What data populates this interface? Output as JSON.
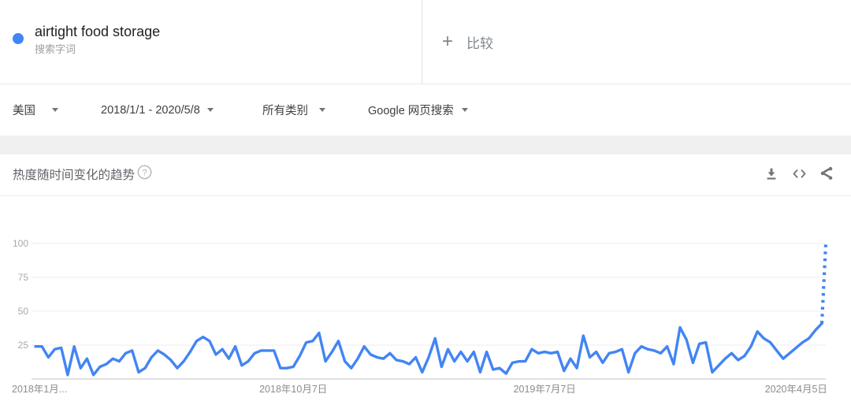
{
  "term": {
    "query": "airtight food storage",
    "type_label": "搜索字词"
  },
  "compare": {
    "plus_glyph": "+",
    "label": "比较"
  },
  "filters": [
    {
      "label": "美国"
    },
    {
      "label": "2018/1/1 - 2020/5/8"
    },
    {
      "label": "所有类别"
    },
    {
      "label": "Google 网页搜索"
    }
  ],
  "chart_section": {
    "title": "热度随时间变化的趋势",
    "action_icons": [
      "download-icon",
      "embed-icon",
      "share-icon"
    ]
  },
  "colors": {
    "accent_blue": "#4285f4",
    "grid": "#ececec",
    "axis": "#cfcfcf"
  },
  "chart_data": {
    "type": "line",
    "title": "热度随时间变化的趋势",
    "series_name": "airtight food storage",
    "region": "美国",
    "x_start": "2018/1/1",
    "x_end": "2020/5/8",
    "interval": "weekly",
    "ylim": [
      0,
      100
    ],
    "yticks": [
      25,
      50,
      75,
      100
    ],
    "grid": true,
    "legend_position": "none",
    "line_color": "#4285f4",
    "xticks": [
      {
        "label": "2018年1月...",
        "index": 0,
        "align": "start"
      },
      {
        "label": "2018年10月7日",
        "index": 40,
        "align": "middle"
      },
      {
        "label": "2019年7月7日",
        "index": 79,
        "align": "middle"
      },
      {
        "label": "2020年4月5日",
        "index": 118,
        "align": "middle"
      }
    ],
    "values": [
      24,
      24,
      16,
      22,
      23,
      3,
      24,
      8,
      15,
      3,
      9,
      11,
      15,
      13,
      19,
      21,
      5,
      8,
      16,
      21,
      18,
      14,
      8,
      13,
      20,
      28,
      31,
      28,
      18,
      22,
      15,
      24,
      10,
      13,
      19,
      21,
      21,
      21,
      8,
      8,
      9,
      17,
      27,
      28,
      34,
      13,
      20,
      28,
      13,
      8,
      15,
      24,
      18,
      16,
      15,
      19,
      14,
      13,
      11,
      16,
      5,
      16,
      30,
      9,
      22,
      13,
      20,
      13,
      20,
      5,
      20,
      7,
      8,
      4,
      12,
      13,
      13,
      22,
      19,
      20,
      19,
      20,
      6,
      15,
      8,
      32,
      16,
      20,
      12,
      19,
      20,
      22,
      5,
      19,
      24,
      22,
      21,
      19,
      24,
      11,
      38,
      29,
      12,
      26,
      27,
      5,
      10,
      15,
      19,
      14,
      17,
      24,
      35,
      30,
      27,
      21,
      15,
      19,
      23,
      27,
      30,
      36,
      41
    ],
    "partial_last_value": 100,
    "partial_style": "dotted"
  }
}
